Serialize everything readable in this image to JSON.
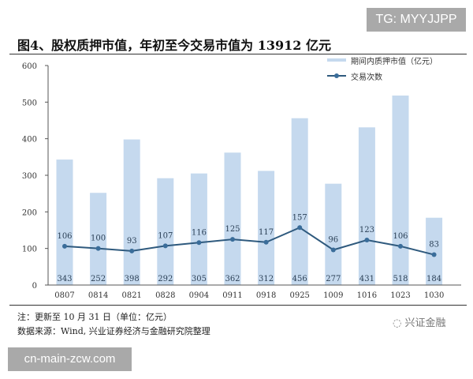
{
  "watermarks": {
    "top": "TG: MYYJJPP",
    "bottom": "cn-main-zcw.com"
  },
  "figure_title": "图4、股权质押市值，年初至今交易市值为 13912 亿元",
  "legend": {
    "bar": "期间内质押市值（亿元）",
    "line": "交易次数"
  },
  "notes": {
    "line1": "注：更新至 10 月 31 日（单位：亿元）",
    "line2": "数据来源：Wind, 兴业证券经济与金融研究院整理"
  },
  "brand": "兴证金融",
  "colors": {
    "bar": "#c5d9ee",
    "line": "#2f5a7e",
    "marker": "#3a6d9a",
    "axis": "#555555"
  },
  "chart_data": {
    "type": "bar",
    "title": "图4、股权质押市值，年初至今交易市值为 13912 亿元",
    "xlabel": "",
    "ylabel": "",
    "ylim": [
      0,
      600
    ],
    "yticks": [
      0,
      100,
      200,
      300,
      400,
      500,
      600
    ],
    "grid": false,
    "legend_position": "top-right",
    "categories": [
      "0807",
      "0814",
      "0821",
      "0828",
      "0904",
      "0911",
      "0918",
      "0925",
      "1009",
      "1016",
      "1023",
      "1030"
    ],
    "series": [
      {
        "name": "期间内质押市值（亿元）",
        "type": "bar",
        "values": [
          343,
          252,
          398,
          292,
          305,
          362,
          312,
          456,
          277,
          431,
          518,
          184
        ]
      },
      {
        "name": "交易次数",
        "type": "line",
        "values": [
          106,
          100,
          93,
          107,
          116,
          125,
          117,
          157,
          96,
          123,
          106,
          83
        ]
      }
    ]
  }
}
